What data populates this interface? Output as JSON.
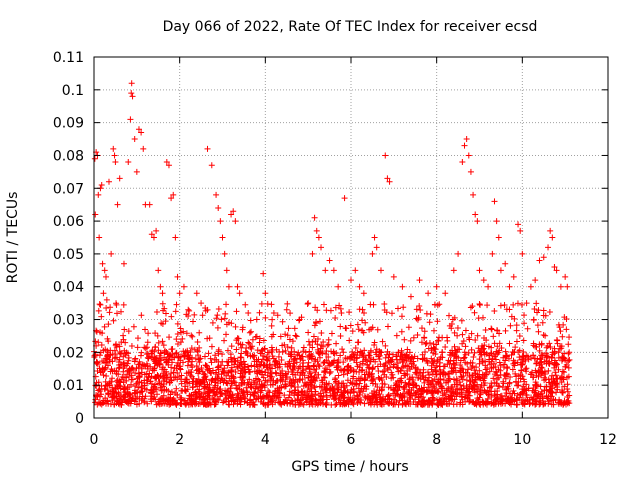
{
  "chart_data": {
    "type": "scatter",
    "title": "Day 066 of 2022, Rate Of TEC Index for receiver ecsd",
    "xlabel": "GPS time / hours",
    "ylabel": "ROTI / TECUs",
    "xlim": [
      0,
      12
    ],
    "ylim": [
      0,
      0.11
    ],
    "xticks": [
      "0",
      "2",
      "4",
      "6",
      "8",
      "10",
      "12"
    ],
    "yticks": [
      "0",
      "0.01",
      "0.02",
      "0.03",
      "0.04",
      "0.05",
      "0.06",
      "0.07",
      "0.08",
      "0.09",
      "0.1",
      "0.11"
    ],
    "grid": true,
    "marker": "+",
    "color": "#ff0000",
    "x_data_range": [
      0,
      11.1
    ],
    "series": [
      {
        "points": [
          [
            0.02,
            0.079
          ],
          [
            0.05,
            0.081
          ],
          [
            0.08,
            0.08
          ],
          [
            0.03,
            0.062
          ],
          [
            0.1,
            0.068
          ],
          [
            0.15,
            0.07
          ],
          [
            0.18,
            0.071
          ],
          [
            0.12,
            0.055
          ],
          [
            0.2,
            0.047
          ],
          [
            0.25,
            0.045
          ],
          [
            0.28,
            0.043
          ],
          [
            0.22,
            0.038
          ],
          [
            0.3,
            0.036
          ],
          [
            0.35,
            0.072
          ],
          [
            0.4,
            0.05
          ],
          [
            0.45,
            0.082
          ],
          [
            0.48,
            0.08
          ],
          [
            0.5,
            0.078
          ],
          [
            0.55,
            0.065
          ],
          [
            0.6,
            0.073
          ],
          [
            0.7,
            0.047
          ],
          [
            0.8,
            0.078
          ],
          [
            0.85,
            0.091
          ],
          [
            0.87,
            0.099
          ],
          [
            0.88,
            0.102
          ],
          [
            0.9,
            0.098
          ],
          [
            0.95,
            0.085
          ],
          [
            1.0,
            0.075
          ],
          [
            1.05,
            0.088
          ],
          [
            1.1,
            0.087
          ],
          [
            1.15,
            0.082
          ],
          [
            1.2,
            0.065
          ],
          [
            1.3,
            0.065
          ],
          [
            1.35,
            0.056
          ],
          [
            1.4,
            0.055
          ],
          [
            1.45,
            0.057
          ],
          [
            1.5,
            0.045
          ],
          [
            1.55,
            0.04
          ],
          [
            1.6,
            0.038
          ],
          [
            1.7,
            0.078
          ],
          [
            1.75,
            0.077
          ],
          [
            1.8,
            0.067
          ],
          [
            1.85,
            0.068
          ],
          [
            1.9,
            0.055
          ],
          [
            1.95,
            0.043
          ],
          [
            2.0,
            0.038
          ],
          [
            2.1,
            0.04
          ],
          [
            2.2,
            0.033
          ],
          [
            2.4,
            0.038
          ],
          [
            2.5,
            0.035
          ],
          [
            2.65,
            0.082
          ],
          [
            2.75,
            0.077
          ],
          [
            2.85,
            0.068
          ],
          [
            2.9,
            0.064
          ],
          [
            2.95,
            0.06
          ],
          [
            3.0,
            0.055
          ],
          [
            3.05,
            0.05
          ],
          [
            3.1,
            0.045
          ],
          [
            3.15,
            0.04
          ],
          [
            3.2,
            0.062
          ],
          [
            3.25,
            0.063
          ],
          [
            3.3,
            0.06
          ],
          [
            3.35,
            0.04
          ],
          [
            3.4,
            0.038
          ],
          [
            3.6,
            0.032
          ],
          [
            3.8,
            0.03
          ],
          [
            3.95,
            0.044
          ],
          [
            4.0,
            0.038
          ],
          [
            4.2,
            0.032
          ],
          [
            4.5,
            0.033
          ],
          [
            4.8,
            0.03
          ],
          [
            5.0,
            0.035
          ],
          [
            5.1,
            0.05
          ],
          [
            5.15,
            0.061
          ],
          [
            5.2,
            0.057
          ],
          [
            5.25,
            0.055
          ],
          [
            5.3,
            0.052
          ],
          [
            5.4,
            0.045
          ],
          [
            5.5,
            0.048
          ],
          [
            5.6,
            0.045
          ],
          [
            5.7,
            0.04
          ],
          [
            5.85,
            0.067
          ],
          [
            6.0,
            0.042
          ],
          [
            6.1,
            0.045
          ],
          [
            6.2,
            0.04
          ],
          [
            6.3,
            0.038
          ],
          [
            6.5,
            0.05
          ],
          [
            6.55,
            0.055
          ],
          [
            6.6,
            0.052
          ],
          [
            6.7,
            0.045
          ],
          [
            6.8,
            0.08
          ],
          [
            6.85,
            0.073
          ],
          [
            6.9,
            0.072
          ],
          [
            7.0,
            0.043
          ],
          [
            7.2,
            0.04
          ],
          [
            7.4,
            0.037
          ],
          [
            7.6,
            0.042
          ],
          [
            7.8,
            0.038
          ],
          [
            8.0,
            0.04
          ],
          [
            8.2,
            0.038
          ],
          [
            8.4,
            0.045
          ],
          [
            8.5,
            0.05
          ],
          [
            8.6,
            0.078
          ],
          [
            8.65,
            0.083
          ],
          [
            8.7,
            0.085
          ],
          [
            8.75,
            0.08
          ],
          [
            8.8,
            0.075
          ],
          [
            8.85,
            0.068
          ],
          [
            8.9,
            0.062
          ],
          [
            8.95,
            0.06
          ],
          [
            9.0,
            0.045
          ],
          [
            9.1,
            0.042
          ],
          [
            9.2,
            0.04
          ],
          [
            9.3,
            0.05
          ],
          [
            9.35,
            0.066
          ],
          [
            9.4,
            0.06
          ],
          [
            9.45,
            0.055
          ],
          [
            9.5,
            0.045
          ],
          [
            9.6,
            0.047
          ],
          [
            9.7,
            0.04
          ],
          [
            9.8,
            0.043
          ],
          [
            9.9,
            0.059
          ],
          [
            9.95,
            0.057
          ],
          [
            10.0,
            0.05
          ],
          [
            10.1,
            0.035
          ],
          [
            10.2,
            0.04
          ],
          [
            10.3,
            0.042
          ],
          [
            10.4,
            0.048
          ],
          [
            10.5,
            0.049
          ],
          [
            10.6,
            0.052
          ],
          [
            10.65,
            0.057
          ],
          [
            10.7,
            0.055
          ],
          [
            10.75,
            0.046
          ],
          [
            10.8,
            0.045
          ],
          [
            10.9,
            0.04
          ],
          [
            11.0,
            0.043
          ],
          [
            11.05,
            0.04
          ]
        ],
        "dense_band": {
          "x": [
            0,
            11.1
          ],
          "y": [
            0.004,
            0.02
          ],
          "upper_scatter": [
            0.02,
            0.035
          ]
        }
      }
    ]
  }
}
